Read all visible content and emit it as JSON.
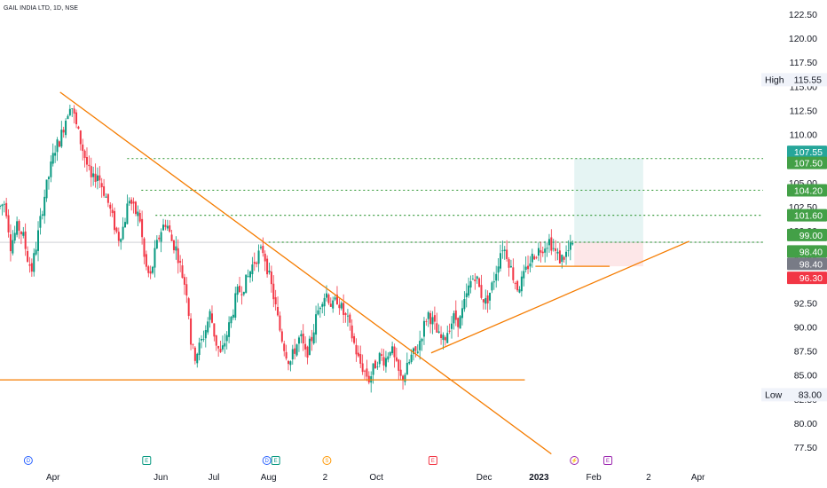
{
  "chart_data": {
    "type": "candlestick",
    "title": "GAIL INDIA LTD, 1D, NSE",
    "ylim": [
      76.5,
      124.0
    ],
    "y_ticks": [
      "122.50",
      "120.00",
      "117.50",
      "115.00",
      "112.50",
      "110.00",
      "107.50",
      "105.00",
      "102.50",
      "100.00",
      "97.50",
      "95.00",
      "92.50",
      "90.00",
      "87.50",
      "85.00",
      "82.50",
      "80.00",
      "77.50"
    ],
    "x_tick_labels": [
      {
        "label": "Apr",
        "day": 30,
        "bold": false
      },
      {
        "label": "Jun",
        "day": 91,
        "bold": false
      },
      {
        "label": "Jul",
        "day": 121,
        "bold": false
      },
      {
        "label": "Aug",
        "day": 152,
        "bold": false
      },
      {
        "label": "2",
        "day": 184,
        "bold": false
      },
      {
        "label": "Oct",
        "day": 213,
        "bold": false
      },
      {
        "label": "Dec",
        "day": 274,
        "bold": false
      },
      {
        "label": "2023",
        "day": 305,
        "bold": true
      },
      {
        "label": "Feb",
        "day": 336,
        "bold": false
      },
      {
        "label": "2",
        "day": 367,
        "bold": false
      },
      {
        "label": "Apr",
        "day": 395,
        "bold": false
      }
    ],
    "x_range_days": [
      0,
      468
    ],
    "price_levels": [
      {
        "label": "107.55",
        "value": 107.55,
        "color": "#26a69a"
      },
      {
        "label": "107.50",
        "value": 107.5,
        "color": "#43a047"
      },
      {
        "label": "104.20",
        "value": 104.2,
        "color": "#43a047"
      },
      {
        "label": "101.60",
        "value": 101.6,
        "color": "#43a047"
      },
      {
        "label": "99.00",
        "value": 99.0,
        "color": "#43a047"
      },
      {
        "label": "98.40",
        "value": 98.4,
        "color": "#43a047"
      },
      {
        "label": "98.40",
        "value": 98.4,
        "color": "#787b86"
      },
      {
        "label": "96.30",
        "value": 96.3,
        "color": "#f23645"
      }
    ],
    "high_label": {
      "name": "High",
      "value": "115.55",
      "price": 115.55
    },
    "low_label": {
      "name": "Low",
      "value": "83.00",
      "price": 83.0
    },
    "dotted_levels": [
      107.5,
      104.2,
      101.6,
      98.8
    ],
    "trendlines": [
      {
        "from": [
          34,
          114.4
        ],
        "to": [
          312,
          76.8
        ]
      },
      {
        "from": [
          244,
          87.3
        ],
        "to": [
          390,
          98.9
        ]
      }
    ],
    "horizontal_lines": [
      {
        "from_day": 0,
        "to_day": 297,
        "price": 84.5
      },
      {
        "from_day": 303,
        "to_day": 345,
        "price": 96.3
      }
    ],
    "position": {
      "from_day": 325,
      "to_day": 364,
      "entry": 98.8,
      "target": 107.5,
      "stop": 96.3
    },
    "last_price": 98.8,
    "event_markers": [
      {
        "day": 16,
        "letter": "D",
        "color": "#2962ff"
      },
      {
        "day": 83,
        "letter": "E",
        "color": "#089981"
      },
      {
        "day": 151,
        "letter": "D",
        "color": "#2962ff"
      },
      {
        "day": 156,
        "letter": "E",
        "color": "#089981"
      },
      {
        "day": 185,
        "letter": "S",
        "color": "#ff9800"
      },
      {
        "day": 245,
        "letter": "E",
        "color": "#f23645"
      },
      {
        "day": 325,
        "letter": "⚡",
        "color": "#9c27b0"
      },
      {
        "day": 344,
        "letter": "E",
        "color": "#9c27b0"
      }
    ],
    "candle_anchors": [
      [
        0,
        102.5
      ],
      [
        3,
        103.0
      ],
      [
        6,
        98.5
      ],
      [
        10,
        100.5
      ],
      [
        13,
        99.5
      ],
      [
        16,
        96.8
      ],
      [
        18,
        96.0
      ],
      [
        21,
        99.0
      ],
      [
        25,
        103.5
      ],
      [
        28,
        106.0
      ],
      [
        31,
        108.5
      ],
      [
        34,
        109.5
      ],
      [
        37,
        111.5
      ],
      [
        40,
        113.5
      ],
      [
        43,
        111.0
      ],
      [
        46,
        109.0
      ],
      [
        49,
        107.0
      ],
      [
        52,
        105.0
      ],
      [
        55,
        106.0
      ],
      [
        58,
        104.5
      ],
      [
        61,
        103.0
      ],
      [
        64,
        101.0
      ],
      [
        67,
        99.2
      ],
      [
        70,
        100.5
      ],
      [
        73,
        103.5
      ],
      [
        76,
        102.0
      ],
      [
        79,
        101.5
      ],
      [
        82,
        96.5
      ],
      [
        85,
        95.0
      ],
      [
        88,
        98.0
      ],
      [
        91,
        100.0
      ],
      [
        94,
        101.0
      ],
      [
        97,
        99.0
      ],
      [
        100,
        98.0
      ],
      [
        103,
        95.5
      ],
      [
        106,
        93.5
      ],
      [
        108,
        88.5
      ],
      [
        110,
        86.8
      ],
      [
        113,
        88.0
      ],
      [
        116,
        89.5
      ],
      [
        119,
        91.5
      ],
      [
        122,
        88.5
      ],
      [
        125,
        87.0
      ],
      [
        128,
        89.0
      ],
      [
        131,
        91.0
      ],
      [
        134,
        93.5
      ],
      [
        137,
        94.0
      ],
      [
        140,
        95.0
      ],
      [
        143,
        96.5
      ],
      [
        146,
        97.5
      ],
      [
        149,
        98.0
      ],
      [
        152,
        95.5
      ],
      [
        155,
        93.0
      ],
      [
        158,
        90.0
      ],
      [
        161,
        87.8
      ],
      [
        164,
        86.2
      ],
      [
        167,
        87.8
      ],
      [
        170,
        89.0
      ],
      [
        173,
        87.0
      ],
      [
        176,
        88.5
      ],
      [
        179,
        91.0
      ],
      [
        182,
        93.0
      ],
      [
        185,
        93.5
      ],
      [
        188,
        92.0
      ],
      [
        191,
        93.0
      ],
      [
        194,
        91.5
      ],
      [
        197,
        90.5
      ],
      [
        200,
        88.5
      ],
      [
        203,
        86.5
      ],
      [
        206,
        85.5
      ],
      [
        209,
        84.5
      ],
      [
        212,
        86.0
      ],
      [
        215,
        87.0
      ],
      [
        218,
        86.5
      ],
      [
        221,
        88.0
      ],
      [
        224,
        86.0
      ],
      [
        227,
        84.5
      ],
      [
        230,
        85.5
      ],
      [
        233,
        87.0
      ],
      [
        236,
        87.5
      ],
      [
        239,
        89.5
      ],
      [
        242,
        91.5
      ],
      [
        245,
        90.5
      ],
      [
        248,
        89.0
      ],
      [
        251,
        88.5
      ],
      [
        254,
        90.0
      ],
      [
        257,
        91.0
      ],
      [
        260,
        90.5
      ],
      [
        263,
        92.5
      ],
      [
        266,
        94.5
      ],
      [
        269,
        95.5
      ],
      [
        272,
        93.5
      ],
      [
        275,
        92.5
      ],
      [
        278,
        94.0
      ],
      [
        281,
        96.0
      ],
      [
        284,
        98.5
      ],
      [
        287,
        97.5
      ],
      [
        290,
        95.5
      ],
      [
        293,
        94.0
      ],
      [
        296,
        95.0
      ],
      [
        299,
        96.5
      ],
      [
        302,
        97.5
      ],
      [
        305,
        98.0
      ],
      [
        308,
        98.5
      ],
      [
        311,
        99.0
      ],
      [
        314,
        97.8
      ],
      [
        317,
        97.0
      ],
      [
        320,
        97.5
      ],
      [
        323,
        98.2
      ],
      [
        325,
        98.8
      ]
    ]
  }
}
